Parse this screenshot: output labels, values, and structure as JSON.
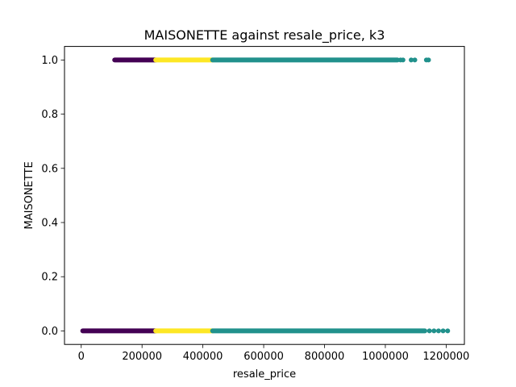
{
  "chart_data": {
    "type": "scatter",
    "title": "MAISONETTE against resale_price, k3",
    "xlabel": "resale_price",
    "ylabel": "MAISONETTE",
    "xlim": [
      -55000,
      1260000
    ],
    "ylim": [
      -0.05,
      1.05
    ],
    "x_ticks": [
      0,
      200000,
      400000,
      600000,
      800000,
      1000000,
      1200000
    ],
    "y_ticks": [
      0.0,
      0.2,
      0.4,
      0.6,
      0.8,
      1.0
    ],
    "x_tick_labels": [
      "0",
      "200000",
      "400000",
      "600000",
      "800000",
      "1000000",
      "1200000"
    ],
    "y_tick_labels": [
      "0.0",
      "0.2",
      "0.4",
      "0.6",
      "0.8",
      "1.0"
    ],
    "grid": false,
    "legend": "none",
    "clusters": [
      {
        "color": "#440154",
        "segments": [
          {
            "y": 0,
            "x_min": 5000,
            "x_max": 245000
          },
          {
            "y": 1,
            "x_min": 110000,
            "x_max": 245000
          }
        ]
      },
      {
        "color": "#fde725",
        "segments": [
          {
            "y": 0,
            "x_min": 245000,
            "x_max": 432000
          },
          {
            "y": 1,
            "x_min": 245000,
            "x_max": 432000
          }
        ]
      },
      {
        "color": "#21918c",
        "segments": [
          {
            "y": 0,
            "x_min": 432000,
            "x_max": 1130000
          },
          {
            "y": 1,
            "x_min": 432000,
            "x_max": 1040000
          }
        ],
        "points": [
          {
            "y": 0,
            "x": 1145000
          },
          {
            "y": 0,
            "x": 1160000
          },
          {
            "y": 0,
            "x": 1175000
          },
          {
            "y": 0,
            "x": 1190000
          },
          {
            "y": 0,
            "x": 1205000
          },
          {
            "y": 1,
            "x": 1050000
          },
          {
            "y": 1,
            "x": 1058000
          },
          {
            "y": 1,
            "x": 1085000
          },
          {
            "y": 1,
            "x": 1097000
          },
          {
            "y": 1,
            "x": 1135000
          },
          {
            "y": 1,
            "x": 1142000
          }
        ]
      }
    ]
  }
}
